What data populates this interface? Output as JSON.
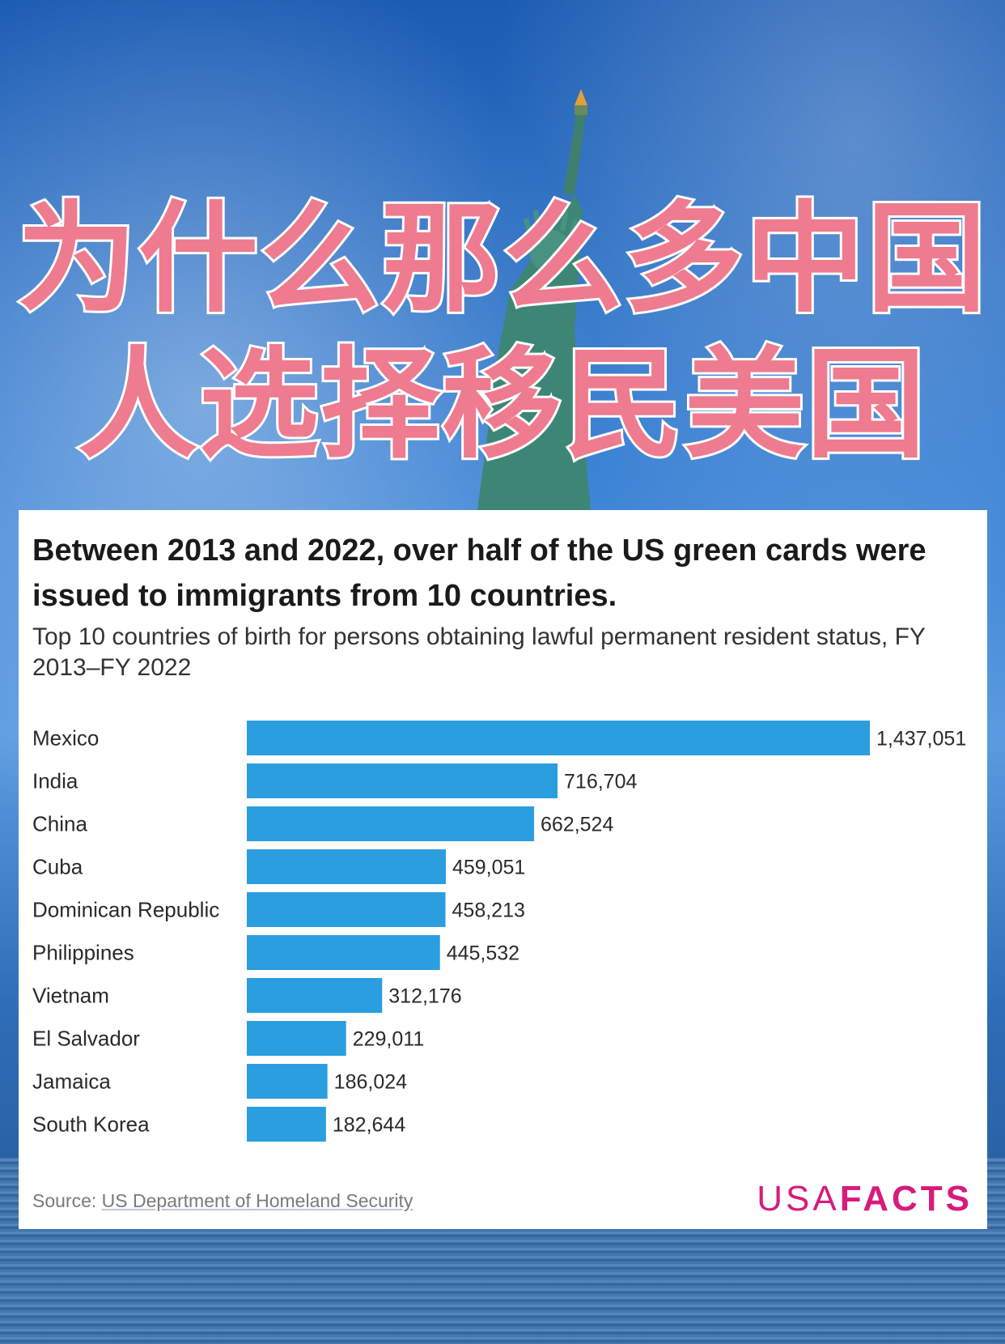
{
  "headline": [
    "为什么那么多中国",
    "人选择移民美国"
  ],
  "chart_data": {
    "type": "bar",
    "orientation": "horizontal",
    "title": "Between 2013 and 2022, over half of the US green cards were issued to immigrants from 10 countries.",
    "subtitle": "Top 10 countries of birth for persons obtaining lawful permanent resident status, FY 2013–FY 2022",
    "categories": [
      "Mexico",
      "India",
      "China",
      "Cuba",
      "Dominican Republic",
      "Philippines",
      "Vietnam",
      "El Salvador",
      "Jamaica",
      "South Korea"
    ],
    "values": [
      1437051,
      716704,
      662524,
      459051,
      458213,
      445532,
      312176,
      229011,
      186024,
      182644
    ],
    "value_labels": [
      "1,437,051",
      "716,704",
      "662,524",
      "459,051",
      "458,213",
      "445,532",
      "312,176",
      "229,011",
      "186,024",
      "182,644"
    ],
    "xlim": [
      0,
      1437051
    ],
    "grid": false,
    "bar_color": "#2b9ee0"
  },
  "source": {
    "prefix": "Source: ",
    "name": "US Department of Homeland Security"
  },
  "logo": {
    "part1": "USA",
    "part2": "FACTS"
  }
}
